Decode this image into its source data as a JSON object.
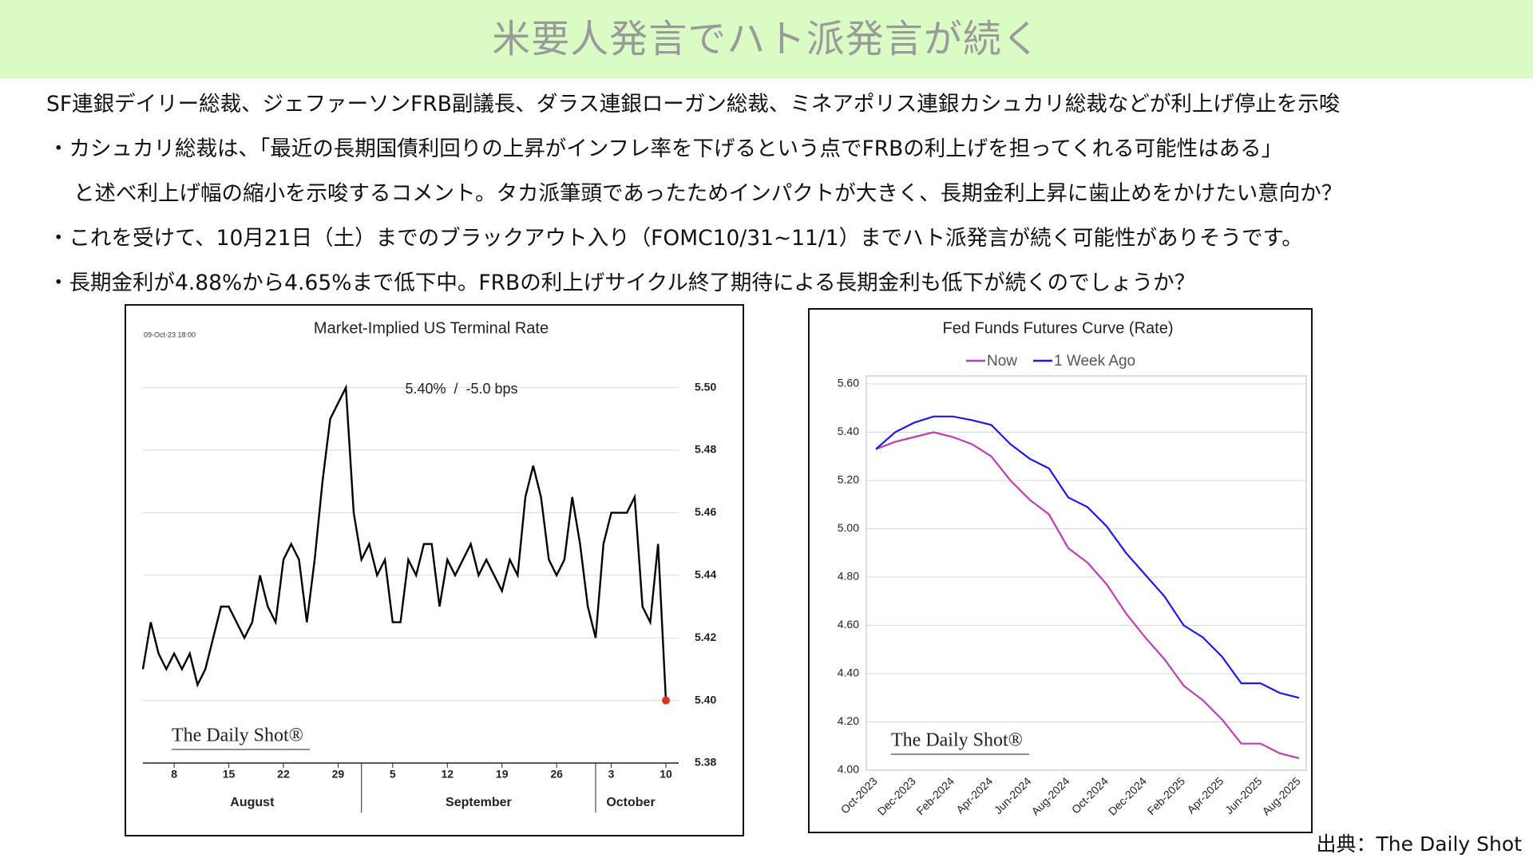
{
  "header": {
    "title": "米要人発言でハト派発言が続く"
  },
  "body": {
    "lines": [
      "SF連銀デイリー総裁、ジェファーソンFRB副議長、ダラス連銀ローガン総裁、ミネアポリス連銀カシュカリ総裁などが利上げ停止を示唆",
      "・カシュカリ総裁は、「最近の長期国債利回りの上昇がインフレ率を下げるという点でFRBの利上げを担ってくれる可能性はある」",
      "と述べ利上げ幅の縮小を示唆するコメント。タカ派筆頭であったためインパクトが大きく、長期金利上昇に歯止めをかけたい意向か？",
      "・これを受けて、10月21日（土）までのブラックアウト入り（FOMC10/31~11/1）までハト派発言が続く可能性がありそうです。",
      "・長期金利が4.88%から4.65%まで低下中。FRBの利上げサイクル終了期待による長期金利も低下が続くのでしょうか？"
    ]
  },
  "source": "出典：The Daily Shot",
  "chart_data": [
    {
      "type": "line",
      "title": "Market-Implied US Terminal Rate",
      "timestamp": "09-Oct-23 18:00",
      "annotation": "5.40%  /  -5.0 bps",
      "watermark": "The Daily Shot®",
      "color": "#000000",
      "end_marker_color": "#e03020",
      "grid": true,
      "y_axis_side": "right",
      "x": [
        4,
        5,
        6,
        7,
        8,
        9,
        10,
        11,
        12,
        13,
        14,
        15,
        16,
        17,
        18,
        19,
        20,
        21,
        22,
        23,
        24,
        25,
        26,
        27,
        28,
        29,
        30,
        31,
        32,
        33,
        34,
        35,
        36,
        37,
        38,
        39,
        40,
        41,
        42,
        43,
        44,
        45,
        46,
        47,
        48,
        49,
        50,
        51,
        52,
        53,
        54,
        55,
        56,
        57,
        58,
        59,
        60,
        61,
        62,
        63,
        64,
        65,
        66,
        67,
        68,
        69,
        70,
        71
      ],
      "values": [
        5.41,
        5.425,
        5.415,
        5.41,
        5.415,
        5.41,
        5.415,
        5.405,
        5.41,
        5.42,
        5.43,
        5.43,
        5.425,
        5.42,
        5.425,
        5.44,
        5.43,
        5.425,
        5.445,
        5.45,
        5.445,
        5.425,
        5.445,
        5.47,
        5.49,
        5.495,
        5.5,
        5.46,
        5.445,
        5.45,
        5.44,
        5.445,
        5.425,
        5.425,
        5.445,
        5.44,
        5.45,
        5.45,
        5.43,
        5.445,
        5.44,
        5.445,
        5.45,
        5.44,
        5.445,
        5.44,
        5.435,
        5.445,
        5.44,
        5.465,
        5.475,
        5.465,
        5.445,
        5.44,
        5.445,
        5.465,
        5.45,
        5.43,
        5.42,
        5.45,
        5.46,
        5.46,
        5.46,
        5.465,
        5.43,
        5.425,
        5.45,
        5.4
      ],
      "xlim": [
        4,
        71
      ],
      "xticks": [
        8,
        15,
        22,
        29,
        {
          "value": 36,
          "label": "5"
        },
        {
          "value": 43,
          "label": "12"
        },
        {
          "value": 50,
          "label": "19"
        },
        {
          "value": 57,
          "label": "26"
        },
        {
          "value": 64,
          "label": "3"
        },
        {
          "value": 71,
          "label": "10"
        }
      ],
      "months": [
        {
          "label": "August",
          "start": 1,
          "end": 32
        },
        {
          "label": "September",
          "start": 32,
          "end": 62
        },
        {
          "label": "October",
          "start": 62,
          "end": 72
        }
      ],
      "ylim": [
        5.38,
        5.505
      ],
      "yticks": [
        5.38,
        {
          "value": 5.4,
          "label": "5.40"
        },
        5.42,
        5.44,
        5.46,
        5.48,
        {
          "value": 5.5,
          "label": "5.50"
        }
      ]
    },
    {
      "type": "line",
      "title": "Fed Funds Futures Curve (Rate)",
      "watermark": "The Daily Shot®",
      "grid": true,
      "legend": "top",
      "y_axis_side": "left",
      "categories": [
        "Oct-2023",
        null,
        "Dec-2023",
        null,
        "Feb-2024",
        null,
        "Apr-2024",
        null,
        "Jun-2024",
        null,
        "Aug-2024",
        null,
        "Oct-2024",
        null,
        "Dec-2024",
        null,
        "Feb-2025",
        null,
        "Apr-2025",
        null,
        "Jun-2025",
        null,
        "Aug-2025"
      ],
      "series": [
        {
          "name": "Now",
          "color": "#c03cb4",
          "values": [
            5.33,
            5.36,
            5.38,
            5.4,
            5.38,
            5.35,
            5.3,
            5.2,
            5.12,
            5.06,
            4.92,
            4.86,
            4.77,
            4.65,
            4.55,
            4.46,
            4.35,
            4.29,
            4.21,
            4.11,
            4.11,
            4.07,
            4.05
          ]
        },
        {
          "name": "1 Week Ago",
          "color": "#1a1aee",
          "values": [
            5.33,
            5.4,
            5.44,
            5.465,
            5.465,
            5.45,
            5.43,
            5.35,
            5.29,
            5.25,
            5.13,
            5.09,
            5.01,
            4.9,
            4.81,
            4.72,
            4.6,
            4.55,
            4.47,
            4.36,
            4.36,
            4.32,
            4.3
          ]
        }
      ],
      "ylim": [
        4.0,
        5.6
      ],
      "yticks": [
        {
          "value": 4.0,
          "label": "4.00"
        },
        {
          "value": 4.2,
          "label": "4.20"
        },
        {
          "value": 4.4,
          "label": "4.40"
        },
        {
          "value": 4.6,
          "label": "4.60"
        },
        {
          "value": 4.8,
          "label": "4.80"
        },
        {
          "value": 5.0,
          "label": "5.00"
        },
        {
          "value": 5.2,
          "label": "5.20"
        },
        {
          "value": 5.4,
          "label": "5.40"
        },
        {
          "value": 5.6,
          "label": "5.60"
        }
      ]
    }
  ]
}
